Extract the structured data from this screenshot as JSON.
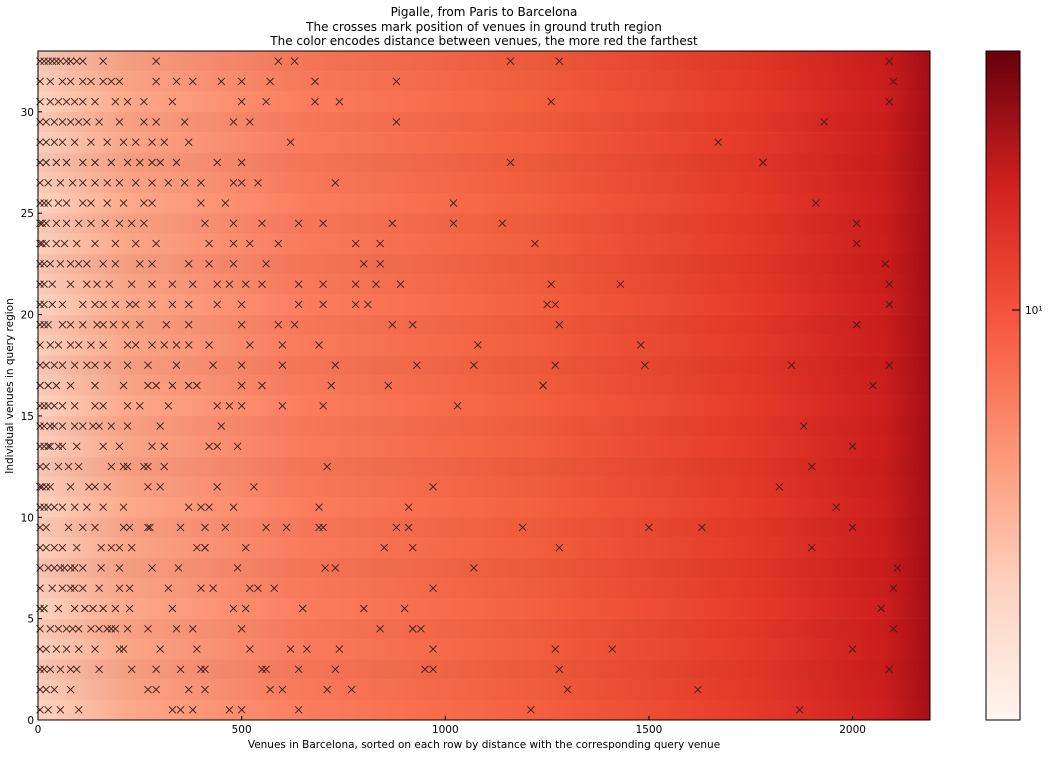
{
  "title_lines": [
    "Pigalle, from Paris to Barcelona",
    "The crosses mark position of venues in ground truth region",
    "The color encodes distance between venues, the more red the farthest"
  ],
  "xlabel": "Venues in Barcelona, sorted on each row by distance with the corresponding query venue",
  "ylabel": "Individual venues in query region",
  "chart_data": {
    "type": "heatmap",
    "title": "Pigalle, from Paris to Barcelona / The crosses mark position of venues in ground truth region / The color encodes distance between venues, the more red the farthest",
    "xlabel": "Venues in Barcelona, sorted on each row by distance with the corresponding query venue",
    "ylabel": "Individual venues in query region",
    "xlim": [
      0,
      2190
    ],
    "ylim": [
      0,
      33
    ],
    "x_ticks": [
      0,
      500,
      1000,
      1500,
      2000
    ],
    "y_ticks": [
      0,
      5,
      10,
      15,
      20,
      25,
      30
    ],
    "colormap": "Reds",
    "colorbar_scale": "log",
    "colorbar_tick_label": "10¹",
    "colorbar_tick_value": 10,
    "grid": false,
    "rows": [
      {
        "y": 0.5,
        "x": [
          5,
          25,
          55,
          100,
          330,
          350,
          380,
          470,
          500,
          640,
          1210,
          1870
        ]
      },
      {
        "y": 1.5,
        "x": [
          5,
          20,
          40,
          80,
          270,
          290,
          370,
          410,
          570,
          600,
          710,
          770,
          1300,
          1620
        ]
      },
      {
        "y": 2.5,
        "x": [
          5,
          15,
          30,
          55,
          80,
          95,
          150,
          230,
          290,
          350,
          400,
          410,
          550,
          560,
          640,
          730,
          950,
          970,
          1280,
          2090
        ]
      },
      {
        "y": 3.5,
        "x": [
          5,
          20,
          45,
          70,
          100,
          140,
          200,
          210,
          300,
          390,
          520,
          620,
          660,
          740,
          970,
          1270,
          1410,
          2000
        ]
      },
      {
        "y": 4.5,
        "x": [
          5,
          30,
          50,
          70,
          85,
          100,
          130,
          150,
          170,
          180,
          190,
          220,
          270,
          340,
          380,
          500,
          840,
          920,
          940,
          2100
        ]
      },
      {
        "y": 5.5,
        "x": [
          5,
          15,
          50,
          90,
          115,
          135,
          160,
          190,
          225,
          330,
          480,
          510,
          650,
          800,
          900,
          2070
        ]
      },
      {
        "y": 6.5,
        "x": [
          5,
          35,
          60,
          80,
          90,
          110,
          150,
          200,
          225,
          320,
          400,
          430,
          520,
          540,
          580,
          970,
          2100
        ]
      },
      {
        "y": 7.5,
        "x": [
          5,
          25,
          40,
          55,
          65,
          80,
          90,
          110,
          155,
          200,
          280,
          345,
          490,
          705,
          730,
          1070,
          2110
        ]
      },
      {
        "y": 8.5,
        "x": [
          5,
          20,
          40,
          60,
          95,
          155,
          180,
          200,
          230,
          390,
          410,
          410,
          510,
          850,
          920,
          1280,
          1900
        ]
      },
      {
        "y": 9.5,
        "x": [
          5,
          20,
          75,
          110,
          140,
          210,
          225,
          270,
          275,
          350,
          410,
          460,
          560,
          610,
          690,
          700,
          880,
          910,
          1190,
          1500,
          1630,
          2000
        ]
      },
      {
        "y": 10.5,
        "x": [
          5,
          15,
          25,
          40,
          60,
          90,
          120,
          160,
          210,
          370,
          400,
          420,
          480,
          690,
          910,
          1960
        ]
      },
      {
        "y": 11.5,
        "x": [
          5,
          10,
          20,
          30,
          80,
          125,
          140,
          170,
          270,
          300,
          440,
          530,
          970,
          1820
        ]
      },
      {
        "y": 12.5,
        "x": [
          5,
          20,
          50,
          75,
          100,
          180,
          210,
          220,
          260,
          270,
          310,
          710,
          1900
        ]
      },
      {
        "y": 13.5,
        "x": [
          5,
          15,
          25,
          30,
          50,
          60,
          95,
          160,
          200,
          280,
          310,
          420,
          440,
          490,
          2000
        ]
      },
      {
        "y": 14.5,
        "x": [
          5,
          15,
          30,
          40,
          60,
          90,
          110,
          135,
          150,
          180,
          220,
          300,
          450,
          1880
        ]
      },
      {
        "y": 15.5,
        "x": [
          5,
          15,
          25,
          40,
          60,
          90,
          140,
          160,
          220,
          250,
          320,
          440,
          470,
          500,
          600,
          700,
          1030
        ]
      },
      {
        "y": 16.5,
        "x": [
          5,
          25,
          45,
          80,
          140,
          210,
          270,
          290,
          330,
          370,
          390,
          500,
          550,
          720,
          860,
          1240,
          2050
        ]
      },
      {
        "y": 17.5,
        "x": [
          5,
          20,
          40,
          60,
          90,
          120,
          140,
          170,
          220,
          270,
          340,
          430,
          500,
          600,
          730,
          930,
          1070,
          1270,
          1490,
          1850,
          2090
        ]
      },
      {
        "y": 18.5,
        "x": [
          5,
          30,
          50,
          80,
          100,
          130,
          160,
          220,
          240,
          280,
          310,
          340,
          370,
          420,
          520,
          600,
          690,
          1080,
          1480
        ]
      },
      {
        "y": 19.5,
        "x": [
          5,
          15,
          25,
          60,
          80,
          110,
          145,
          160,
          185,
          215,
          250,
          315,
          370,
          500,
          590,
          630,
          870,
          920,
          1280,
          2010
        ]
      },
      {
        "y": 20.5,
        "x": [
          5,
          15,
          35,
          60,
          110,
          140,
          160,
          190,
          225,
          240,
          280,
          330,
          370,
          440,
          500,
          640,
          700,
          780,
          810,
          1250,
          1270,
          2090
        ]
      },
      {
        "y": 21.5,
        "x": [
          5,
          15,
          35,
          80,
          120,
          145,
          175,
          230,
          280,
          330,
          380,
          440,
          470,
          510,
          550,
          640,
          700,
          780,
          830,
          890,
          1260,
          1430,
          2090
        ]
      },
      {
        "y": 22.5,
        "x": [
          5,
          15,
          30,
          55,
          80,
          100,
          120,
          160,
          190,
          250,
          280,
          370,
          420,
          480,
          560,
          800,
          840,
          2080
        ]
      },
      {
        "y": 23.5,
        "x": [
          5,
          10,
          20,
          45,
          65,
          95,
          140,
          190,
          240,
          290,
          420,
          480,
          520,
          590,
          780,
          840,
          1220,
          2010
        ]
      },
      {
        "y": 24.5,
        "x": [
          5,
          10,
          20,
          45,
          70,
          100,
          130,
          165,
          200,
          230,
          260,
          410,
          480,
          550,
          640,
          700,
          870,
          1020,
          1140,
          2010
        ]
      },
      {
        "y": 25.5,
        "x": [
          5,
          15,
          25,
          50,
          70,
          110,
          130,
          170,
          210,
          260,
          280,
          400,
          460,
          1020,
          1910
        ]
      },
      {
        "y": 26.5,
        "x": [
          5,
          25,
          55,
          85,
          110,
          140,
          170,
          200,
          240,
          280,
          320,
          360,
          400,
          480,
          500,
          540,
          730
        ]
      },
      {
        "y": 27.5,
        "x": [
          5,
          20,
          45,
          70,
          110,
          140,
          180,
          220,
          250,
          280,
          300,
          340,
          440,
          500,
          1160,
          1780
        ]
      },
      {
        "y": 28.5,
        "x": [
          5,
          20,
          40,
          60,
          90,
          130,
          170,
          210,
          240,
          280,
          310,
          370,
          620,
          1670
        ]
      },
      {
        "y": 29.5,
        "x": [
          5,
          20,
          40,
          60,
          80,
          100,
          120,
          150,
          200,
          260,
          290,
          360,
          480,
          520,
          880,
          1930
        ]
      },
      {
        "y": 30.5,
        "x": [
          5,
          30,
          50,
          70,
          90,
          110,
          140,
          190,
          220,
          260,
          330,
          500,
          560,
          680,
          740,
          1260,
          2090
        ]
      },
      {
        "y": 31.5,
        "x": [
          5,
          30,
          60,
          80,
          110,
          130,
          160,
          180,
          200,
          290,
          340,
          380,
          450,
          500,
          570,
          680,
          880,
          2100
        ]
      },
      {
        "y": 32.5,
        "x": [
          5,
          15,
          25,
          35,
          45,
          55,
          70,
          80,
          95,
          110,
          160,
          290,
          590,
          630,
          1160,
          1280,
          2090
        ]
      }
    ]
  }
}
